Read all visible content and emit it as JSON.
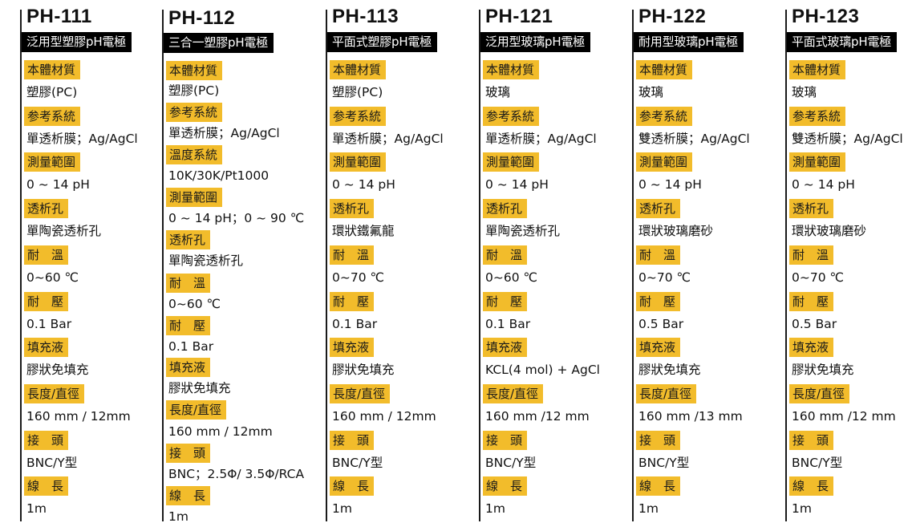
{
  "labels": {
    "material": "本體材質",
    "reference": "参考系統",
    "temp_system": "溫度系統",
    "range": "測量範圍",
    "junction": "透析孔",
    "temp": "耐　溫",
    "pressure": "耐　壓",
    "fill": "填充液",
    "length": "長度/直徑",
    "connector": "接　頭",
    "cable": "線　長"
  },
  "products": [
    {
      "code": "PH-111",
      "name": "泛用型塑膠pH電極",
      "material": "塑膠(PC)",
      "reference": "單透析膜；Ag/AgCl",
      "range": "0 ~ 14 pH",
      "junction": "單陶瓷透析孔",
      "temp": "0~60 ℃",
      "pressure": "0.1 Bar",
      "fill": "膠狀免填充",
      "length": "160 mm / 12mm",
      "connector": "BNC/Y型",
      "cable": "1m"
    },
    {
      "code": "PH-112",
      "name": "三合一塑膠pH電極",
      "material": "塑膠(PC)",
      "reference": "單透析膜；Ag/AgCl",
      "temp_system": "10K/30K/Pt1000",
      "range": "0 ~ 14 pH；0 ~ 90 ℃",
      "junction": "單陶瓷透析孔",
      "temp": "0~60 ℃",
      "pressure": "0.1 Bar",
      "fill": "膠狀免填充",
      "length": "160 mm / 12mm",
      "connector": "BNC；2.5Φ/ 3.5Φ/RCA",
      "cable": "1m"
    },
    {
      "code": "PH-113",
      "name": "平面式塑膠pH電極",
      "material": "塑膠(PC)",
      "reference": "單透析膜；Ag/AgCl",
      "range": "0 ~ 14 pH",
      "junction": "環狀鐵氟龍",
      "temp": "0~70 ℃",
      "pressure": "0.1 Bar",
      "fill": "膠狀免填充",
      "length": "160 mm / 12mm",
      "connector": "BNC/Y型",
      "cable": "1m"
    },
    {
      "code": "PH-121",
      "name": "泛用型玻璃pH電極",
      "material": "玻璃",
      "reference": "單透析膜；Ag/AgCl",
      "range": "0 ~ 14 pH",
      "junction": "單陶瓷透析孔",
      "temp": "0~60 ℃",
      "pressure": "0.1 Bar",
      "fill": "KCL(4 mol) + AgCl",
      "length": "160 mm /12 mm",
      "connector": "BNC/Y型",
      "cable": "1m"
    },
    {
      "code": "PH-122",
      "name": "耐用型玻璃pH電極",
      "material": "玻璃",
      "reference": "雙透析膜；Ag/AgCl",
      "range": "0 ~ 14 pH",
      "junction": "環狀玻璃磨砂",
      "temp": "0~70 ℃",
      "pressure": "0.5 Bar",
      "fill": "膠狀免填充",
      "length": "160 mm /13 mm",
      "connector": "BNC/Y型",
      "cable": "1m"
    },
    {
      "code": "PH-123",
      "name": "平面式玻璃pH電極",
      "material": "玻璃",
      "reference": "雙透析膜；Ag/AgCl",
      "range": "0 ~ 14 pH",
      "junction": "環狀玻璃磨砂",
      "temp": "0~70 ℃",
      "pressure": "0.5 Bar",
      "fill": "膠狀免填充",
      "length": "160 mm /12 mm",
      "connector": "BNC/Y型",
      "cable": "1m"
    }
  ],
  "colors": {
    "label_bg": "#f2bc2b",
    "name_bg": "#000000",
    "name_text": "#ffffff",
    "rule": "#1a1a1a"
  }
}
